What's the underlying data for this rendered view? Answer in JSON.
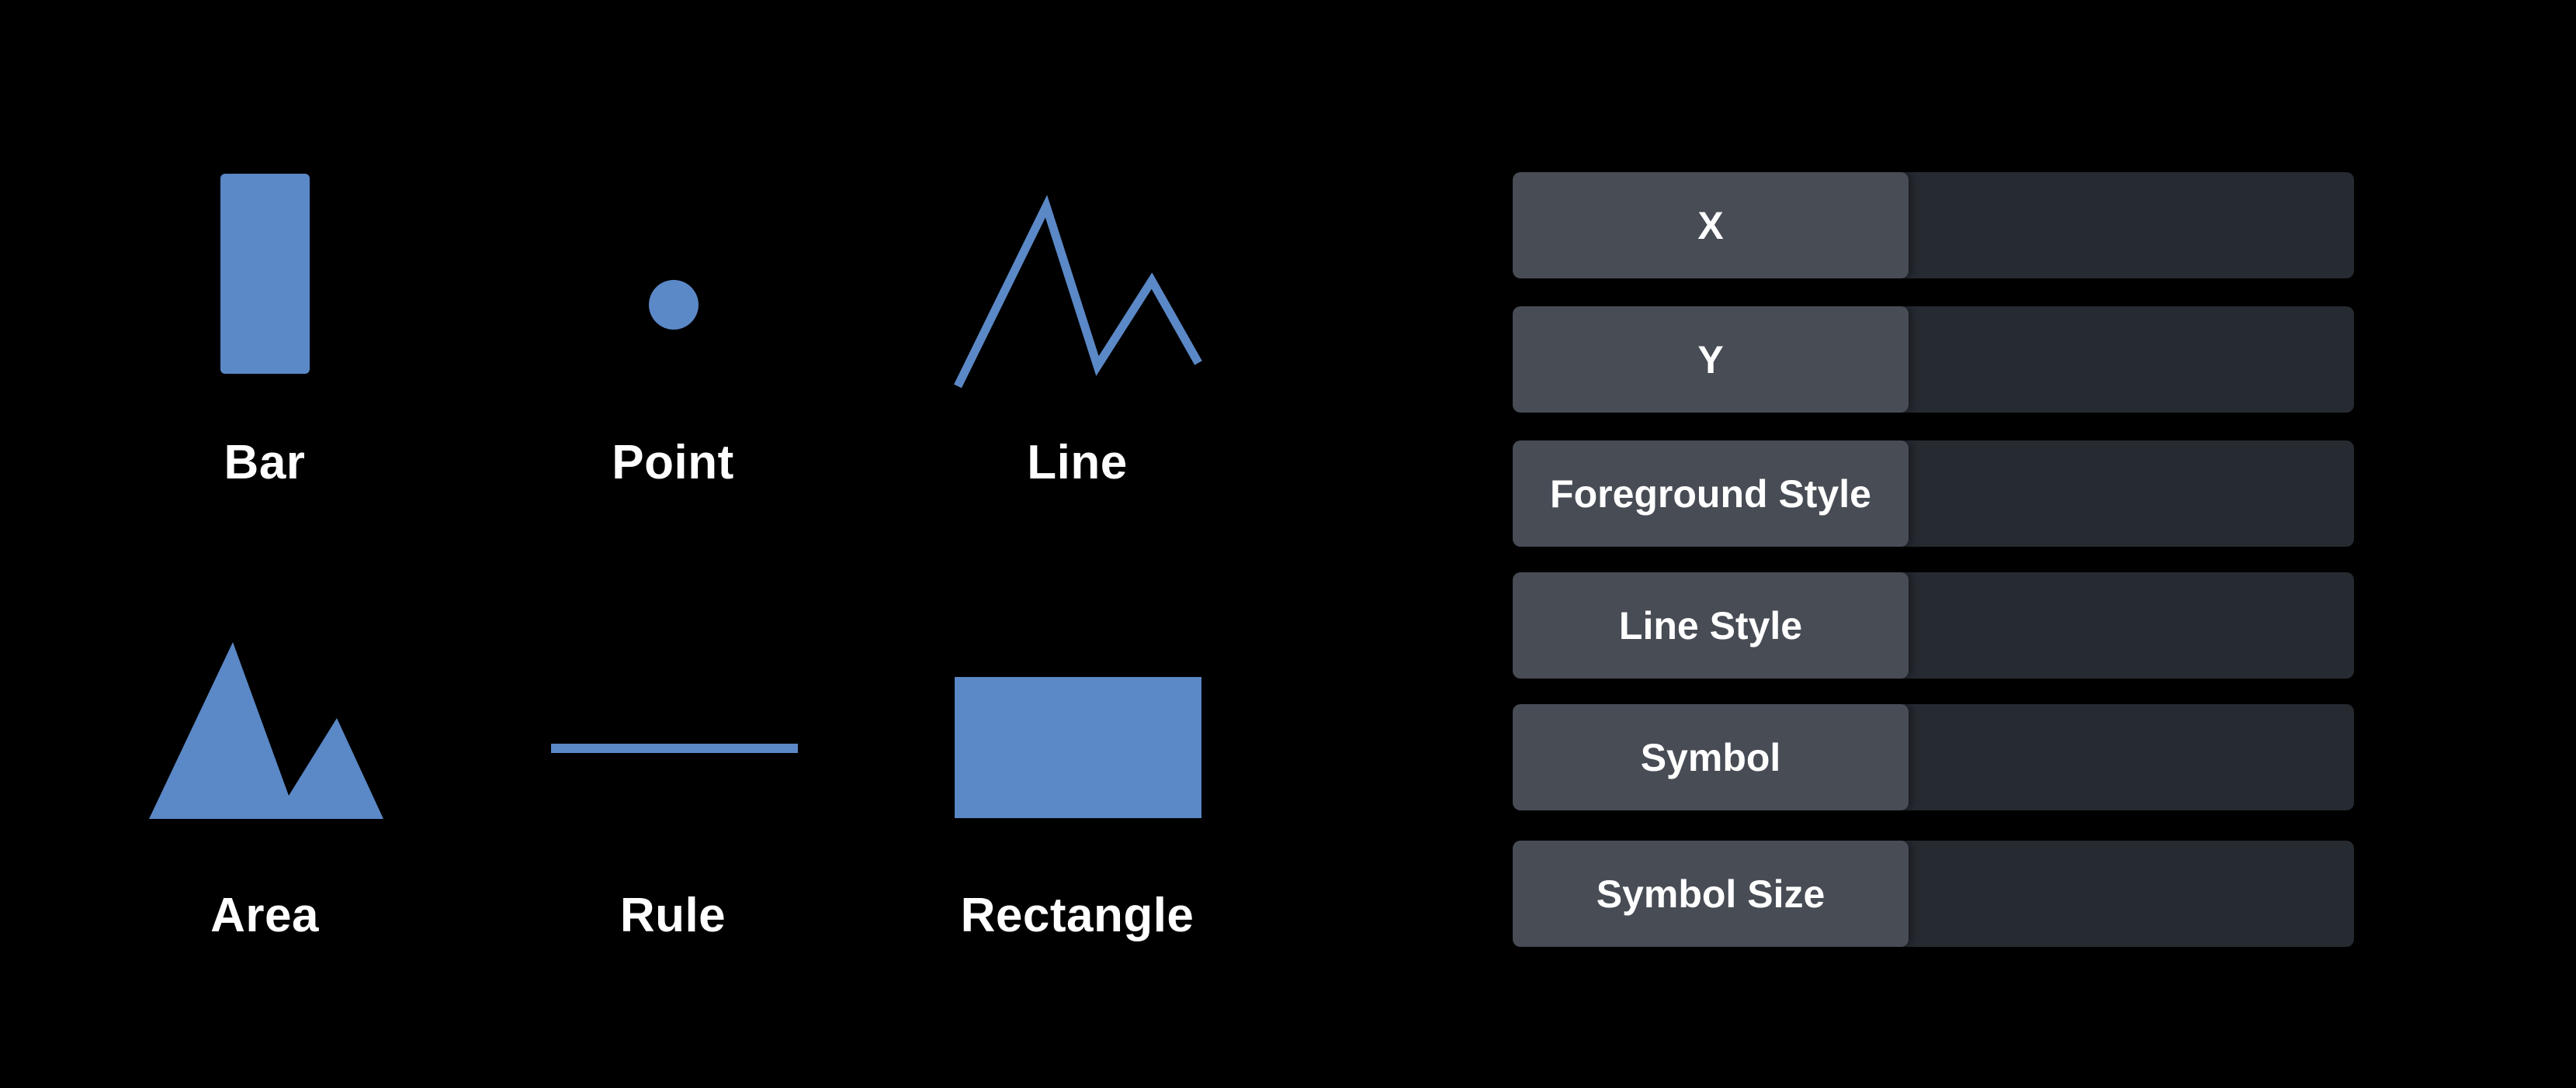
{
  "theme": {
    "background": "#000000",
    "mark_color": "#5b88c6",
    "label_color": "#ffffff",
    "row_key_bg": "#484c55",
    "row_value_bg": "#262a31"
  },
  "marks": [
    {
      "id": "bar",
      "label": "Bar",
      "icon": "bar-mark-icon"
    },
    {
      "id": "point",
      "label": "Point",
      "icon": "point-mark-icon"
    },
    {
      "id": "line",
      "label": "Line",
      "icon": "line-mark-icon"
    },
    {
      "id": "area",
      "label": "Area",
      "icon": "area-mark-icon"
    },
    {
      "id": "rule",
      "label": "Rule",
      "icon": "rule-mark-icon"
    },
    {
      "id": "rectangle",
      "label": "Rectangle",
      "icon": "rectangle-mark-icon"
    }
  ],
  "properties": [
    {
      "label": "X",
      "value": ""
    },
    {
      "label": "Y",
      "value": ""
    },
    {
      "label": "Foreground Style",
      "value": ""
    },
    {
      "label": "Line Style",
      "value": ""
    },
    {
      "label": "Symbol",
      "value": ""
    },
    {
      "label": "Symbol Size",
      "value": ""
    }
  ]
}
